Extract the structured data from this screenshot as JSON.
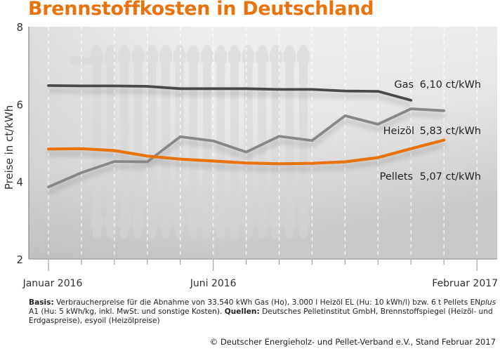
{
  "title": "Brennstoffkosten in Deutschland",
  "chart_data": {
    "type": "line",
    "title": "Brennstoffkosten in Deutschland",
    "xlabel": "",
    "ylabel": "Preise in ct/kWh",
    "ylim": [
      2,
      8
    ],
    "yticks": [
      "2",
      "4",
      "6",
      "8"
    ],
    "ytick_values": [
      2,
      4,
      6,
      8
    ],
    "x": [
      "Jan 2016",
      "Feb 2016",
      "Mär 2016",
      "Apr 2016",
      "Mai 2016",
      "Jun 2016",
      "Jul 2016",
      "Aug 2016",
      "Sep 2016",
      "Okt 2016",
      "Nov 2016",
      "Dez 2016",
      "Jan 2017",
      "Feb 2017"
    ],
    "xtick_labels": [
      {
        "index": 0,
        "label": "Januar 2016"
      },
      {
        "index": 5,
        "label": "Juni 2016"
      },
      {
        "index": 13,
        "label": "Februar 2017"
      }
    ],
    "grid": "vertical dashed",
    "series": [
      {
        "name": "Gas",
        "label": "Gas",
        "value_label": "6,10 ct/kWh",
        "color": "#4a4a4a",
        "values": [
          6.48,
          6.47,
          6.47,
          6.46,
          6.4,
          6.4,
          6.4,
          6.38,
          6.38,
          6.34,
          6.33,
          6.1,
          null,
          null
        ]
      },
      {
        "name": "Heizöl",
        "label": "Heizöl",
        "value_label": "5,83 ct/kWh",
        "color": "#878787",
        "values": [
          3.86,
          4.23,
          4.52,
          4.51,
          5.16,
          5.05,
          4.76,
          5.17,
          5.06,
          5.7,
          5.48,
          5.88,
          5.83,
          null
        ]
      },
      {
        "name": "Pellets",
        "label": "Pellets",
        "value_label": "5,07 ct/kWh",
        "color": "#e8730c",
        "values": [
          4.84,
          4.85,
          4.8,
          4.66,
          4.58,
          4.53,
          4.48,
          4.46,
          4.47,
          4.51,
          4.62,
          4.85,
          5.07,
          null
        ]
      }
    ]
  },
  "footer": {
    "basis_label": "Basis:",
    "basis_text_1": " Verbraucherpreise für die Abnahme von 33.540 kWh Gas (Ho), 3.000 l Heizöl EL (Hu: 10 kWh/l) bzw. 6 t Pellets ",
    "enplus_prefix": "EN",
    "enplus_italic": "plus",
    "basis_text_2": " A1 (Hu: 5 kWh/kg, inkl. MwSt. und sonstige Kosten). ",
    "sources_label": "Quellen:",
    "sources_text": " Deutsches Pelletinstitut GmbH, Brennstoffspiegel (Heizöl- und Erdgaspreise), esyoil (Heizölpreise)"
  },
  "copyright": "© Deutscher Energieholz- und Pellet-Verband e.V., Stand Februar 2017"
}
